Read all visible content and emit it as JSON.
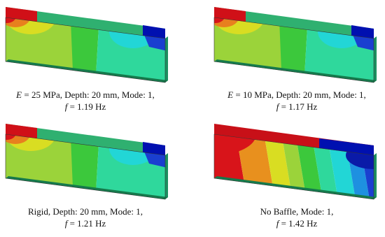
{
  "panels": [
    {
      "style": "baffle",
      "caption": [
        [
          {
            "text": "E",
            "italic": true
          },
          {
            "text": " = 25 MPa, Depth: 20 mm, Mode: 1,"
          }
        ],
        [
          {
            "text": "f",
            "italic": true
          },
          {
            "text": " = 1.19 Hz"
          }
        ]
      ]
    },
    {
      "style": "baffle",
      "caption": [
        [
          {
            "text": "E",
            "italic": true
          },
          {
            "text": " = 10 MPa, Depth: 20 mm, Mode: 1,"
          }
        ],
        [
          {
            "text": "f",
            "italic": true
          },
          {
            "text": " = 1.17 Hz"
          }
        ]
      ]
    },
    {
      "style": "baffle",
      "caption": [
        [
          {
            "text": "Rigid, Depth: 20 mm, Mode: 1,"
          }
        ],
        [
          {
            "text": "f",
            "italic": true
          },
          {
            "text": " = 1.21 Hz"
          }
        ]
      ]
    },
    {
      "style": "free",
      "caption": [
        [
          {
            "text": "No Baffle, Mode: 1,"
          }
        ],
        [
          {
            "text": "f",
            "italic": true
          },
          {
            "text": " = 1.42 Hz"
          }
        ]
      ]
    }
  ]
}
